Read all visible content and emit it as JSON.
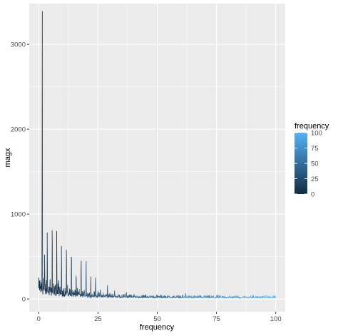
{
  "chart_data": {
    "type": "line",
    "xlabel": "frequency",
    "ylabel": "magx",
    "xlim": [
      -4,
      104
    ],
    "ylim": [
      -150,
      3480
    ],
    "x_ticks": [
      0,
      25,
      50,
      75,
      100
    ],
    "y_ticks": [
      0,
      1000,
      2000,
      3000
    ],
    "grid": true,
    "color_scale": {
      "title": "frequency",
      "low": 0,
      "high": 100,
      "low_color": "#132B43",
      "high_color": "#56B1F7",
      "breaks": [
        0,
        25,
        50,
        75,
        100
      ]
    },
    "legend_position": "right",
    "n_points": 1200,
    "peaks": [
      {
        "x": 1.0,
        "y": 200
      },
      {
        "x": 1.5,
        "y": 3420
      },
      {
        "x": 2.0,
        "y": 250
      },
      {
        "x": 2.5,
        "y": 530
      },
      {
        "x": 3.6,
        "y": 860
      },
      {
        "x": 4.8,
        "y": 310
      },
      {
        "x": 5.7,
        "y": 1000
      },
      {
        "x": 7.6,
        "y": 860
      },
      {
        "x": 8.5,
        "y": 230
      },
      {
        "x": 9.6,
        "y": 660
      },
      {
        "x": 11.7,
        "y": 690
      },
      {
        "x": 13.8,
        "y": 670
      },
      {
        "x": 15.8,
        "y": 360
      },
      {
        "x": 17.9,
        "y": 570
      },
      {
        "x": 20.0,
        "y": 500
      },
      {
        "x": 22.0,
        "y": 300
      },
      {
        "x": 24.0,
        "y": 290
      },
      {
        "x": 26.0,
        "y": 130
      },
      {
        "x": 29.0,
        "y": 190
      },
      {
        "x": 32.0,
        "y": 120
      },
      {
        "x": 37.0,
        "y": 100
      },
      {
        "x": 62.0,
        "y": 85
      }
    ]
  }
}
